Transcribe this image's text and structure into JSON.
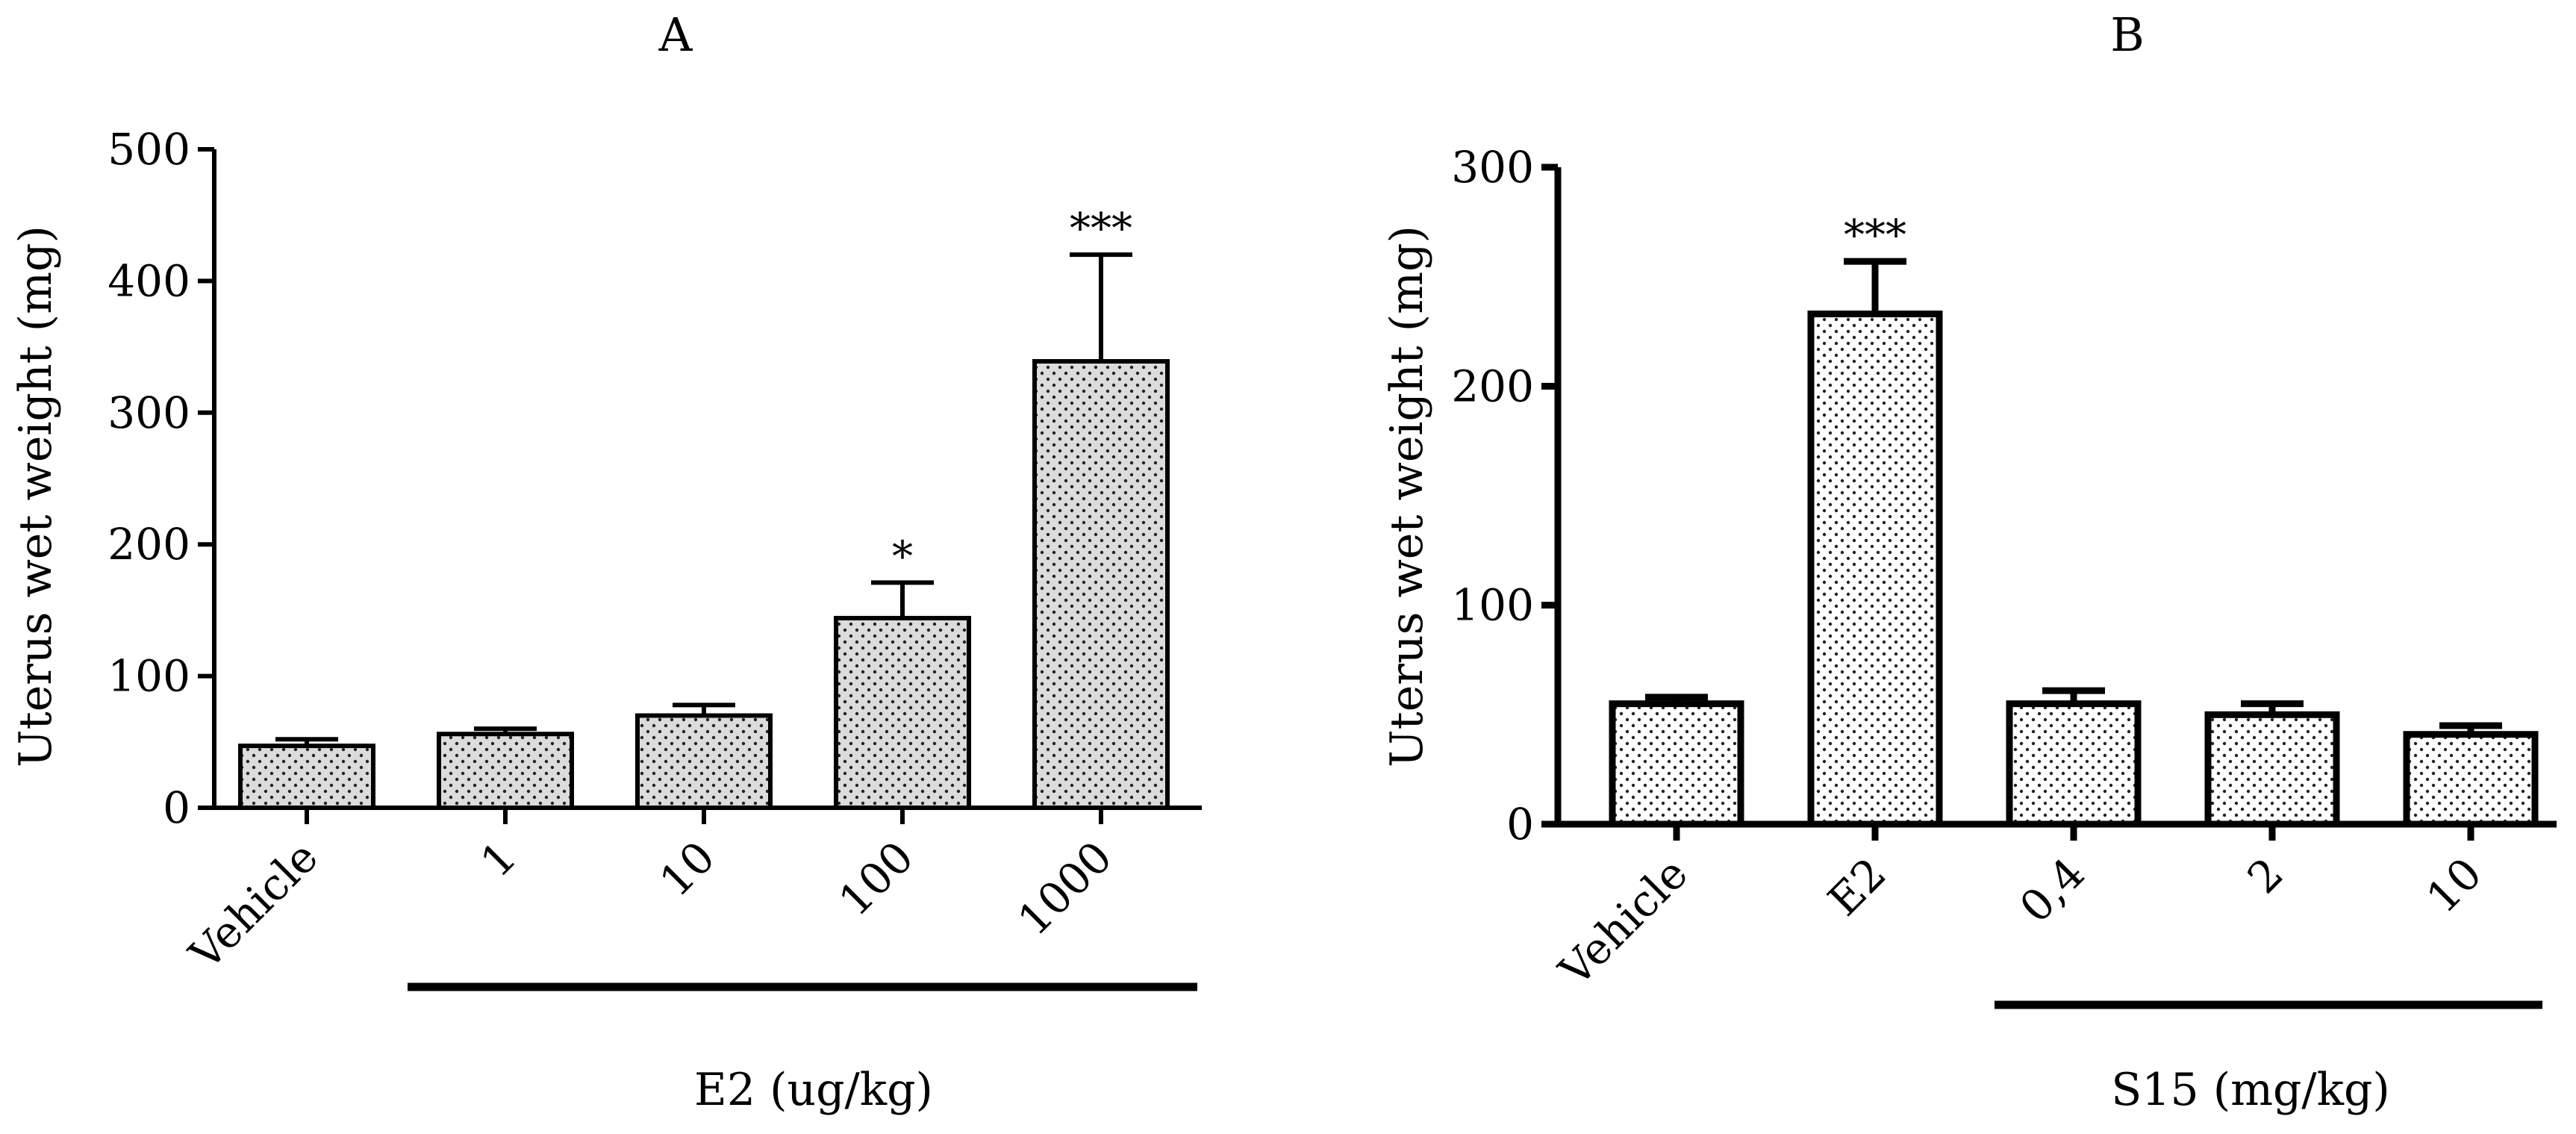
{
  "chart_data": [
    {
      "panel": "A",
      "type": "bar",
      "categories": [
        "Vehicle",
        "1",
        "10",
        "100",
        "1000"
      ],
      "values": [
        47,
        56,
        70,
        144,
        339
      ],
      "errors": [
        5,
        4,
        8,
        27,
        81
      ],
      "significance": [
        "",
        "",
        "",
        "*",
        "***"
      ],
      "title": "A",
      "xlabel": "E2 (ug/kg)",
      "ylabel": "Uterus wet weight (mg)",
      "ylim": [
        0,
        500
      ],
      "yticks": [
        0,
        100,
        200,
        300,
        400,
        500
      ],
      "group_bar_first": 1,
      "group_bar_last": 4,
      "fill": "#dcdcdc"
    },
    {
      "panel": "B",
      "type": "bar",
      "categories": [
        "Vehicle",
        "E2",
        "0,4",
        "2",
        "10"
      ],
      "values": [
        55,
        233,
        55,
        50,
        41
      ],
      "errors": [
        3,
        24,
        6,
        5,
        4
      ],
      "significance": [
        "",
        "***",
        "",
        "",
        ""
      ],
      "title": "B",
      "xlabel": "S15 (mg/kg)",
      "ylabel": "Uterus wet weight (mg)",
      "ylim": [
        0,
        300
      ],
      "yticks": [
        0,
        100,
        200,
        300
      ],
      "group_bar_first": 2,
      "group_bar_last": 4,
      "fill": "#ffffff"
    }
  ]
}
